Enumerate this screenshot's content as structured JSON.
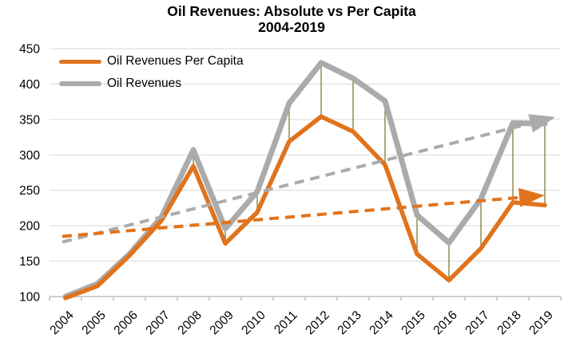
{
  "chart_data": {
    "type": "line",
    "title": "Oil Revenues: Absolute vs Per Capita",
    "subtitle": "2004-2019",
    "categories": [
      "2004",
      "2005",
      "2006",
      "2007",
      "2008",
      "2009",
      "2010",
      "2011",
      "2012",
      "2013",
      "2014",
      "2015",
      "2016",
      "2017",
      "2018",
      "2019"
    ],
    "series": [
      {
        "name": "Oil Revenues Per Capita",
        "color": "#E0731C",
        "values": [
          98,
          115,
          158,
          207,
          284,
          175,
          219,
          319,
          354,
          333,
          286,
          160,
          123,
          168,
          233,
          229
        ]
      },
      {
        "name": "Oil Revenues",
        "color": "#ABABAB",
        "values": [
          100,
          118,
          160,
          212,
          307,
          196,
          248,
          373,
          430,
          408,
          376,
          215,
          176,
          238,
          345,
          344
        ]
      }
    ],
    "trendlines": [
      {
        "for_series": "Oil Revenues",
        "style": "dashed-arrow",
        "color": "#ABABAB",
        "start_value": 177,
        "end_value": 345,
        "arrow_tip_value": 352
      },
      {
        "for_series": "Oil Revenues Per Capita",
        "style": "dashed-arrow",
        "color": "#E0731C",
        "start_value": 185,
        "end_value": 240,
        "arrow_tip_value": 243
      }
    ],
    "connectors": {
      "description": "thin vertical high-low lines between the two series",
      "color": "#837A33",
      "years": [
        "2008",
        "2009",
        "2010",
        "2011",
        "2012",
        "2013",
        "2014",
        "2015",
        "2016",
        "2017",
        "2018",
        "2019"
      ]
    },
    "ylim": [
      100,
      450
    ],
    "yticks": [
      100,
      150,
      200,
      250,
      300,
      350,
      400,
      450
    ],
    "grid": true,
    "legend_position": "top-left",
    "colors": {
      "grid": "#D9D9D9",
      "axis": "#BFBFBF",
      "text": "#000000",
      "background": "#FFFFFF"
    }
  }
}
